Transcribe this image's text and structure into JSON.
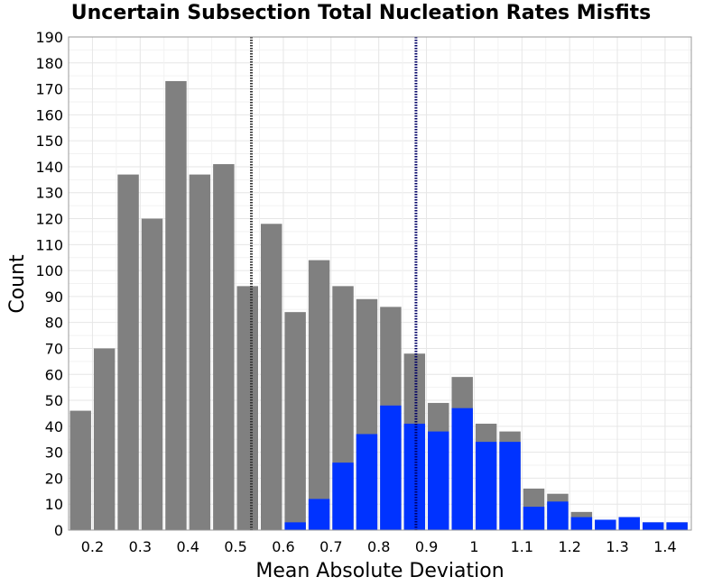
{
  "chart_data": {
    "type": "bar",
    "title": "Uncertain Subsection Total Nucleation Rates Misfits",
    "xlabel": "Mean Absolute Deviation",
    "ylabel": "Count",
    "xlim": [
      0.15,
      1.455
    ],
    "ylim": [
      0,
      190
    ],
    "x_ticks": [
      "0.2",
      "0.3",
      "0.4",
      "0.5",
      "0.6",
      "0.7",
      "0.8",
      "0.9",
      "1",
      "1.1",
      "1.2",
      "1.3",
      "1.4"
    ],
    "y_ticks": [
      "0",
      "10",
      "20",
      "30",
      "40",
      "50",
      "60",
      "70",
      "80",
      "90",
      "100",
      "110",
      "120",
      "130",
      "140",
      "150",
      "160",
      "170",
      "180",
      "190"
    ],
    "bin_width": 0.05,
    "x": [
      0.175,
      0.225,
      0.275,
      0.325,
      0.375,
      0.425,
      0.475,
      0.525,
      0.575,
      0.625,
      0.675,
      0.725,
      0.775,
      0.825,
      0.875,
      0.925,
      0.975,
      1.025,
      1.075,
      1.125,
      1.175,
      1.225,
      1.275,
      1.325,
      1.375,
      1.425
    ],
    "series": [
      {
        "color": "#808080",
        "values": [
          46,
          70,
          137,
          120,
          173,
          137,
          141,
          94,
          118,
          84,
          104,
          94,
          89,
          86,
          68,
          49,
          59,
          41,
          38,
          16,
          14,
          7,
          4,
          5,
          3,
          3
        ]
      },
      {
        "color": "#0033ff",
        "values": [
          0,
          0,
          0,
          0,
          0,
          0,
          0,
          0,
          0,
          3,
          12,
          26,
          37,
          48,
          41,
          38,
          47,
          34,
          34,
          9,
          11,
          5,
          4,
          5,
          3,
          3
        ]
      }
    ],
    "vlines": [
      {
        "x": 0.533,
        "color": "#333333",
        "style": "dotted"
      },
      {
        "x": 0.878,
        "color": "#000066",
        "style": "dotted"
      }
    ],
    "grid": true,
    "legend": "none"
  }
}
